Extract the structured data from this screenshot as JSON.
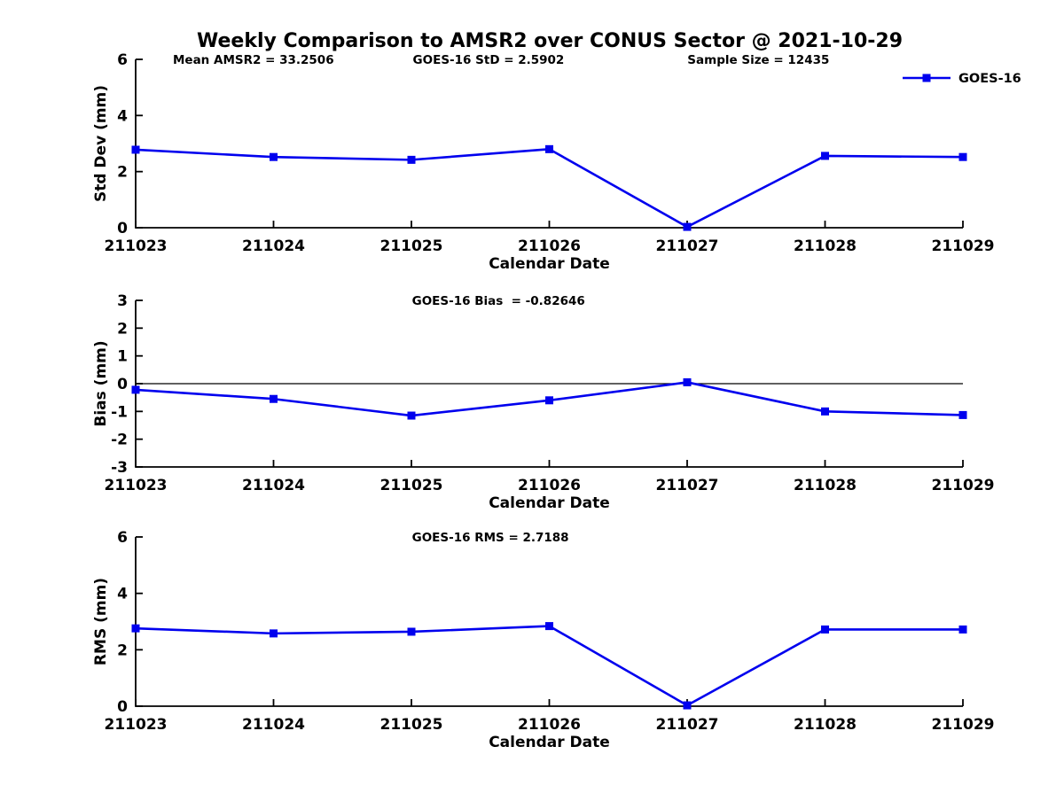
{
  "figure": {
    "title": "Weekly Comparison to AMSR2 over CONUS Sector @ 2021-10-29",
    "legend": {
      "label": "GOES-16",
      "color": "#0000EE",
      "position": "top-right-inside"
    },
    "line_color": "#0000EE",
    "axis_color": "#000000",
    "background_color": "#ffffff"
  },
  "chart_data": [
    {
      "type": "line",
      "name": "std-dev",
      "categories": [
        "211023",
        "211024",
        "211025",
        "211026",
        "211027",
        "211028",
        "211029"
      ],
      "series": [
        {
          "name": "GOES-16",
          "values": [
            2.78,
            2.52,
            2.42,
            2.8,
            0.03,
            2.56,
            2.52
          ]
        }
      ],
      "annotations": [
        "Mean AMSR2 = 33.2506",
        "GOES-16 StD = 2.5902",
        "Sample Size = 12435"
      ],
      "xlabel": "Calendar Date",
      "ylabel": "Std Dev (mm)",
      "ylim": [
        0,
        6
      ],
      "yticks": [
        0,
        2,
        4,
        6
      ],
      "grid": false,
      "zero_line": false,
      "marker": "square"
    },
    {
      "type": "line",
      "name": "bias",
      "categories": [
        "211023",
        "211024",
        "211025",
        "211026",
        "211027",
        "211028",
        "211029"
      ],
      "series": [
        {
          "name": "GOES-16",
          "values": [
            -0.22,
            -0.55,
            -1.15,
            -0.6,
            0.05,
            -1.0,
            -1.13
          ]
        }
      ],
      "annotations": [
        "GOES-16 Bias  = -0.82646"
      ],
      "xlabel": "Calendar Date",
      "ylabel": "Bias (mm)",
      "ylim": [
        -3,
        3
      ],
      "yticks": [
        -3,
        -2,
        -1,
        0,
        1,
        2,
        3
      ],
      "grid": false,
      "zero_line": true,
      "marker": "square"
    },
    {
      "type": "line",
      "name": "rms",
      "categories": [
        "211023",
        "211024",
        "211025",
        "211026",
        "211027",
        "211028",
        "211029"
      ],
      "series": [
        {
          "name": "GOES-16",
          "values": [
            2.76,
            2.58,
            2.64,
            2.84,
            0.03,
            2.72,
            2.72
          ]
        }
      ],
      "annotations": [
        "GOES-16 RMS = 2.7188"
      ],
      "xlabel": "Calendar Date",
      "ylabel": "RMS (mm)",
      "ylim": [
        0,
        6
      ],
      "yticks": [
        0,
        2,
        4,
        6
      ],
      "grid": false,
      "zero_line": false,
      "marker": "square"
    }
  ]
}
